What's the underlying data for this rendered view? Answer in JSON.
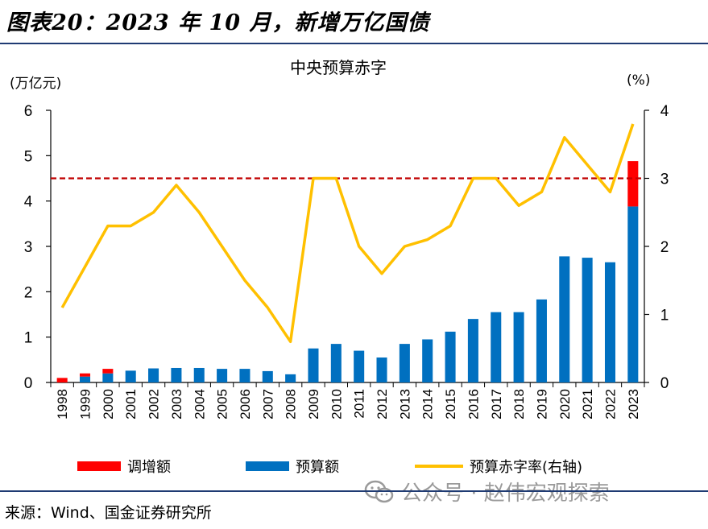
{
  "figure_title": "图表20：2023 年 10 月，新增万亿国债",
  "source": "来源：Wind、国金证券研究所",
  "watermark": "公众号 · 赵伟宏观探索",
  "colors": {
    "adjustment": "#ff0000",
    "budget": "#0070c0",
    "deficit_rate": "#ffc000",
    "reference_line": "#c00000",
    "rule": "#1f3b73"
  },
  "chart_data": {
    "type": "bar",
    "title": "中央预算赤字",
    "ylabel": "(万亿元)",
    "y2label": "(%)",
    "ylim": [
      0,
      6
    ],
    "y2lim": [
      0,
      4
    ],
    "yticks": [
      "0",
      "1",
      "2",
      "3",
      "4",
      "5",
      "6"
    ],
    "y2ticks": [
      "0",
      "1",
      "2",
      "3",
      "4"
    ],
    "categories": [
      "1998",
      "1999",
      "2000",
      "2001",
      "2002",
      "2003",
      "2004",
      "2005",
      "2006",
      "2007",
      "2008",
      "2009",
      "2010",
      "2011",
      "2012",
      "2013",
      "2014",
      "2015",
      "2016",
      "2017",
      "2018",
      "2019",
      "2020",
      "2021",
      "2022",
      "2023"
    ],
    "series": [
      {
        "name": "预算额",
        "type": "bar",
        "stack": "total",
        "axis": "left",
        "values": [
          0.0,
          0.13,
          0.2,
          0.26,
          0.31,
          0.32,
          0.32,
          0.3,
          0.3,
          0.25,
          0.18,
          0.75,
          0.85,
          0.7,
          0.55,
          0.85,
          0.95,
          1.12,
          1.4,
          1.55,
          1.55,
          1.83,
          2.78,
          2.75,
          2.65,
          3.88
        ]
      },
      {
        "name": "调增额",
        "type": "bar",
        "stack": "total",
        "axis": "left",
        "values": [
          0.1,
          0.07,
          0.1,
          0,
          0,
          0,
          0,
          0,
          0,
          0,
          0,
          0,
          0,
          0,
          0,
          0,
          0,
          0,
          0,
          0,
          0,
          0,
          0,
          0,
          0,
          1.0
        ]
      },
      {
        "name": "预算赤字率(右轴)",
        "type": "line",
        "axis": "right",
        "values": [
          1.1,
          1.7,
          2.3,
          2.3,
          2.5,
          2.9,
          2.5,
          2.0,
          1.5,
          1.1,
          0.6,
          3.0,
          3.0,
          2.0,
          1.6,
          2.0,
          2.1,
          2.3,
          3.0,
          3.0,
          2.6,
          2.8,
          3.6,
          3.2,
          2.8,
          3.8
        ]
      }
    ],
    "reference_line": {
      "axis": "right",
      "value": 3.0,
      "style": "dashed"
    },
    "legend": {
      "position": "bottom",
      "entries": [
        "调增额",
        "预算额",
        "预算赤字率(右轴)"
      ]
    }
  }
}
